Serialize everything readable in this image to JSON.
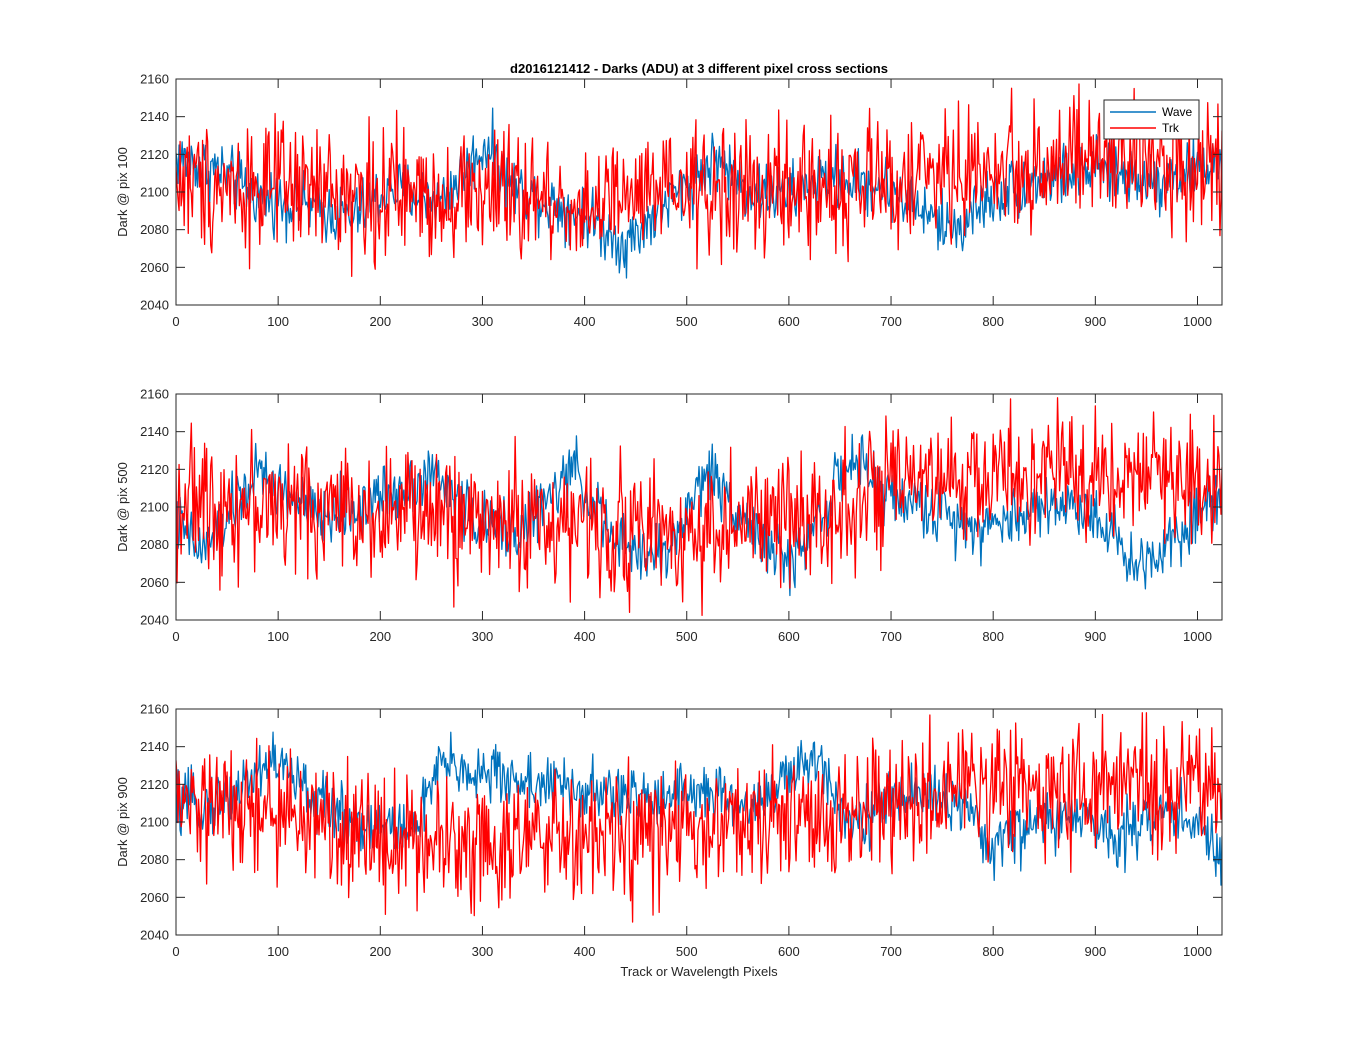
{
  "figure": {
    "title": "d2016121412 - Darks (ADU) at 3 different pixel cross sections",
    "xlabel": "Track or Wavelength Pixels"
  },
  "legend": {
    "position": "top-right",
    "entries": [
      {
        "name": "Wave",
        "color": "#0072BD"
      },
      {
        "name": "Trk",
        "color": "#FF0000"
      }
    ]
  },
  "chart_data": [
    {
      "type": "line",
      "ylabel": "Dark @ pix 100",
      "xlim": [
        0,
        1024
      ],
      "ylim": [
        2040,
        2160
      ],
      "xticks": [
        "0",
        "100",
        "200",
        "300",
        "400",
        "500",
        "600",
        "700",
        "800",
        "900",
        "1000"
      ],
      "yticks": [
        "2040",
        "2060",
        "2080",
        "2100",
        "2120",
        "2140",
        "2160"
      ],
      "grid": false,
      "series": [
        {
          "name": "Wave",
          "color": "#0072BD",
          "noise": 8,
          "x": [
            0,
            40,
            80,
            130,
            170,
            210,
            260,
            305,
            330,
            360,
            400,
            440,
            480,
            530,
            560,
            600,
            640,
            700,
            740,
            760,
            800,
            840,
            880,
            900,
            960,
            1000,
            1024
          ],
          "y": [
            2118,
            2112,
            2098,
            2092,
            2086,
            2102,
            2096,
            2126,
            2102,
            2096,
            2088,
            2072,
            2094,
            2118,
            2100,
            2098,
            2108,
            2102,
            2086,
            2080,
            2098,
            2106,
            2110,
            2112,
            2106,
            2112,
            2118
          ]
        },
        {
          "name": "Trk",
          "color": "#FF0000",
          "noise": 17,
          "x": [
            0,
            100,
            200,
            300,
            400,
            500,
            600,
            700,
            800,
            900,
            1024
          ],
          "y": [
            2106,
            2102,
            2098,
            2100,
            2092,
            2100,
            2100,
            2106,
            2112,
            2116,
            2116
          ]
        }
      ]
    },
    {
      "type": "line",
      "ylabel": "Dark @ pix 500",
      "xlim": [
        0,
        1024
      ],
      "ylim": [
        2040,
        2160
      ],
      "xticks": [
        "0",
        "100",
        "200",
        "300",
        "400",
        "500",
        "600",
        "700",
        "800",
        "900",
        "1000"
      ],
      "yticks": [
        "2040",
        "2060",
        "2080",
        "2100",
        "2120",
        "2140",
        "2160"
      ],
      "grid": false,
      "series": [
        {
          "name": "Wave",
          "color": "#0072BD",
          "noise": 8,
          "x": [
            0,
            25,
            80,
            140,
            180,
            250,
            300,
            340,
            390,
            430,
            480,
            520,
            560,
            600,
            660,
            700,
            760,
            800,
            850,
            900,
            940,
            980,
            1024
          ],
          "y": [
            2092,
            2076,
            2118,
            2094,
            2100,
            2118,
            2090,
            2088,
            2120,
            2080,
            2074,
            2120,
            2092,
            2068,
            2124,
            2106,
            2094,
            2090,
            2102,
            2098,
            2068,
            2086,
            2110
          ]
        },
        {
          "name": "Trk",
          "color": "#FF0000",
          "noise": 17,
          "x": [
            0,
            100,
            200,
            300,
            400,
            500,
            600,
            700,
            800,
            900,
            1024
          ],
          "y": [
            2104,
            2100,
            2098,
            2094,
            2090,
            2086,
            2094,
            2108,
            2116,
            2118,
            2114
          ]
        }
      ]
    },
    {
      "type": "line",
      "ylabel": "Dark @ pix 900",
      "xlim": [
        0,
        1024
      ],
      "ylim": [
        2040,
        2160
      ],
      "xticks": [
        "0",
        "100",
        "200",
        "300",
        "400",
        "500",
        "600",
        "700",
        "800",
        "900",
        "1000"
      ],
      "yticks": [
        "2040",
        "2060",
        "2080",
        "2100",
        "2120",
        "2140",
        "2160"
      ],
      "grid": false,
      "series": [
        {
          "name": "Wave",
          "color": "#0072BD",
          "noise": 8,
          "x": [
            0,
            50,
            95,
            140,
            180,
            230,
            260,
            320,
            360,
            400,
            460,
            500,
            560,
            630,
            660,
            720,
            760,
            800,
            840,
            880,
            920,
            980,
            1024
          ],
          "y": [
            2108,
            2112,
            2134,
            2110,
            2100,
            2094,
            2130,
            2124,
            2120,
            2116,
            2112,
            2118,
            2108,
            2134,
            2100,
            2116,
            2112,
            2086,
            2100,
            2102,
            2094,
            2108,
            2082
          ]
        },
        {
          "name": "Trk",
          "color": "#FF0000",
          "noise": 17,
          "x": [
            0,
            100,
            200,
            300,
            400,
            500,
            600,
            700,
            800,
            900,
            1024
          ],
          "y": [
            2108,
            2104,
            2092,
            2090,
            2090,
            2094,
            2100,
            2108,
            2120,
            2118,
            2118
          ]
        }
      ]
    }
  ]
}
